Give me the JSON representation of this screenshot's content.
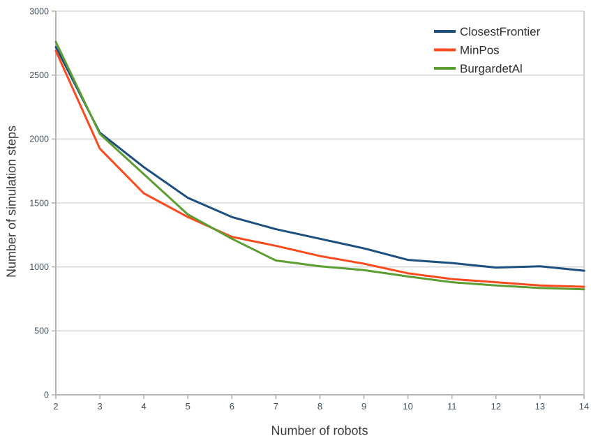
{
  "chart_data": {
    "type": "line",
    "title": "",
    "xlabel": "Number of robots",
    "ylabel": "Number of simulation steps",
    "x": [
      2,
      3,
      4,
      5,
      6,
      7,
      8,
      9,
      10,
      11,
      12,
      13,
      14
    ],
    "series": [
      {
        "name": "ClosestFrontier",
        "color": "#1d4f7e",
        "values": [
          2720,
          2050,
          1780,
          1540,
          1390,
          1295,
          1220,
          1145,
          1055,
          1030,
          995,
          1005,
          970
        ]
      },
      {
        "name": "MinPos",
        "color": "#fb4a1e",
        "values": [
          2690,
          1925,
          1575,
          1390,
          1235,
          1165,
          1085,
          1025,
          950,
          905,
          880,
          855,
          845
        ]
      },
      {
        "name": "BurgardetAl",
        "color": "#5c9e31",
        "values": [
          2760,
          2040,
          1725,
          1410,
          1220,
          1050,
          1005,
          975,
          925,
          880,
          855,
          835,
          825
        ]
      }
    ],
    "ylim": [
      0,
      3000
    ],
    "ytick_step": 500,
    "xticks": [
      2,
      3,
      4,
      5,
      6,
      7,
      8,
      9,
      10,
      11,
      12,
      13,
      14
    ],
    "yticks": [
      0,
      500,
      1000,
      1500,
      2000,
      2500,
      3000
    ],
    "grid": "horizontal",
    "legend_position": "top-right",
    "legend": [
      "ClosestFrontier",
      "MinPos",
      "BurgardetAl"
    ]
  },
  "style_colors": {
    "gridline": "#d8d8d8",
    "frame": "#c9c9c9",
    "axis": "#b3b3b3",
    "tick_label": "#43525e",
    "legend_text": "#2f2f2f",
    "axis_title": "#3c3c3c"
  }
}
